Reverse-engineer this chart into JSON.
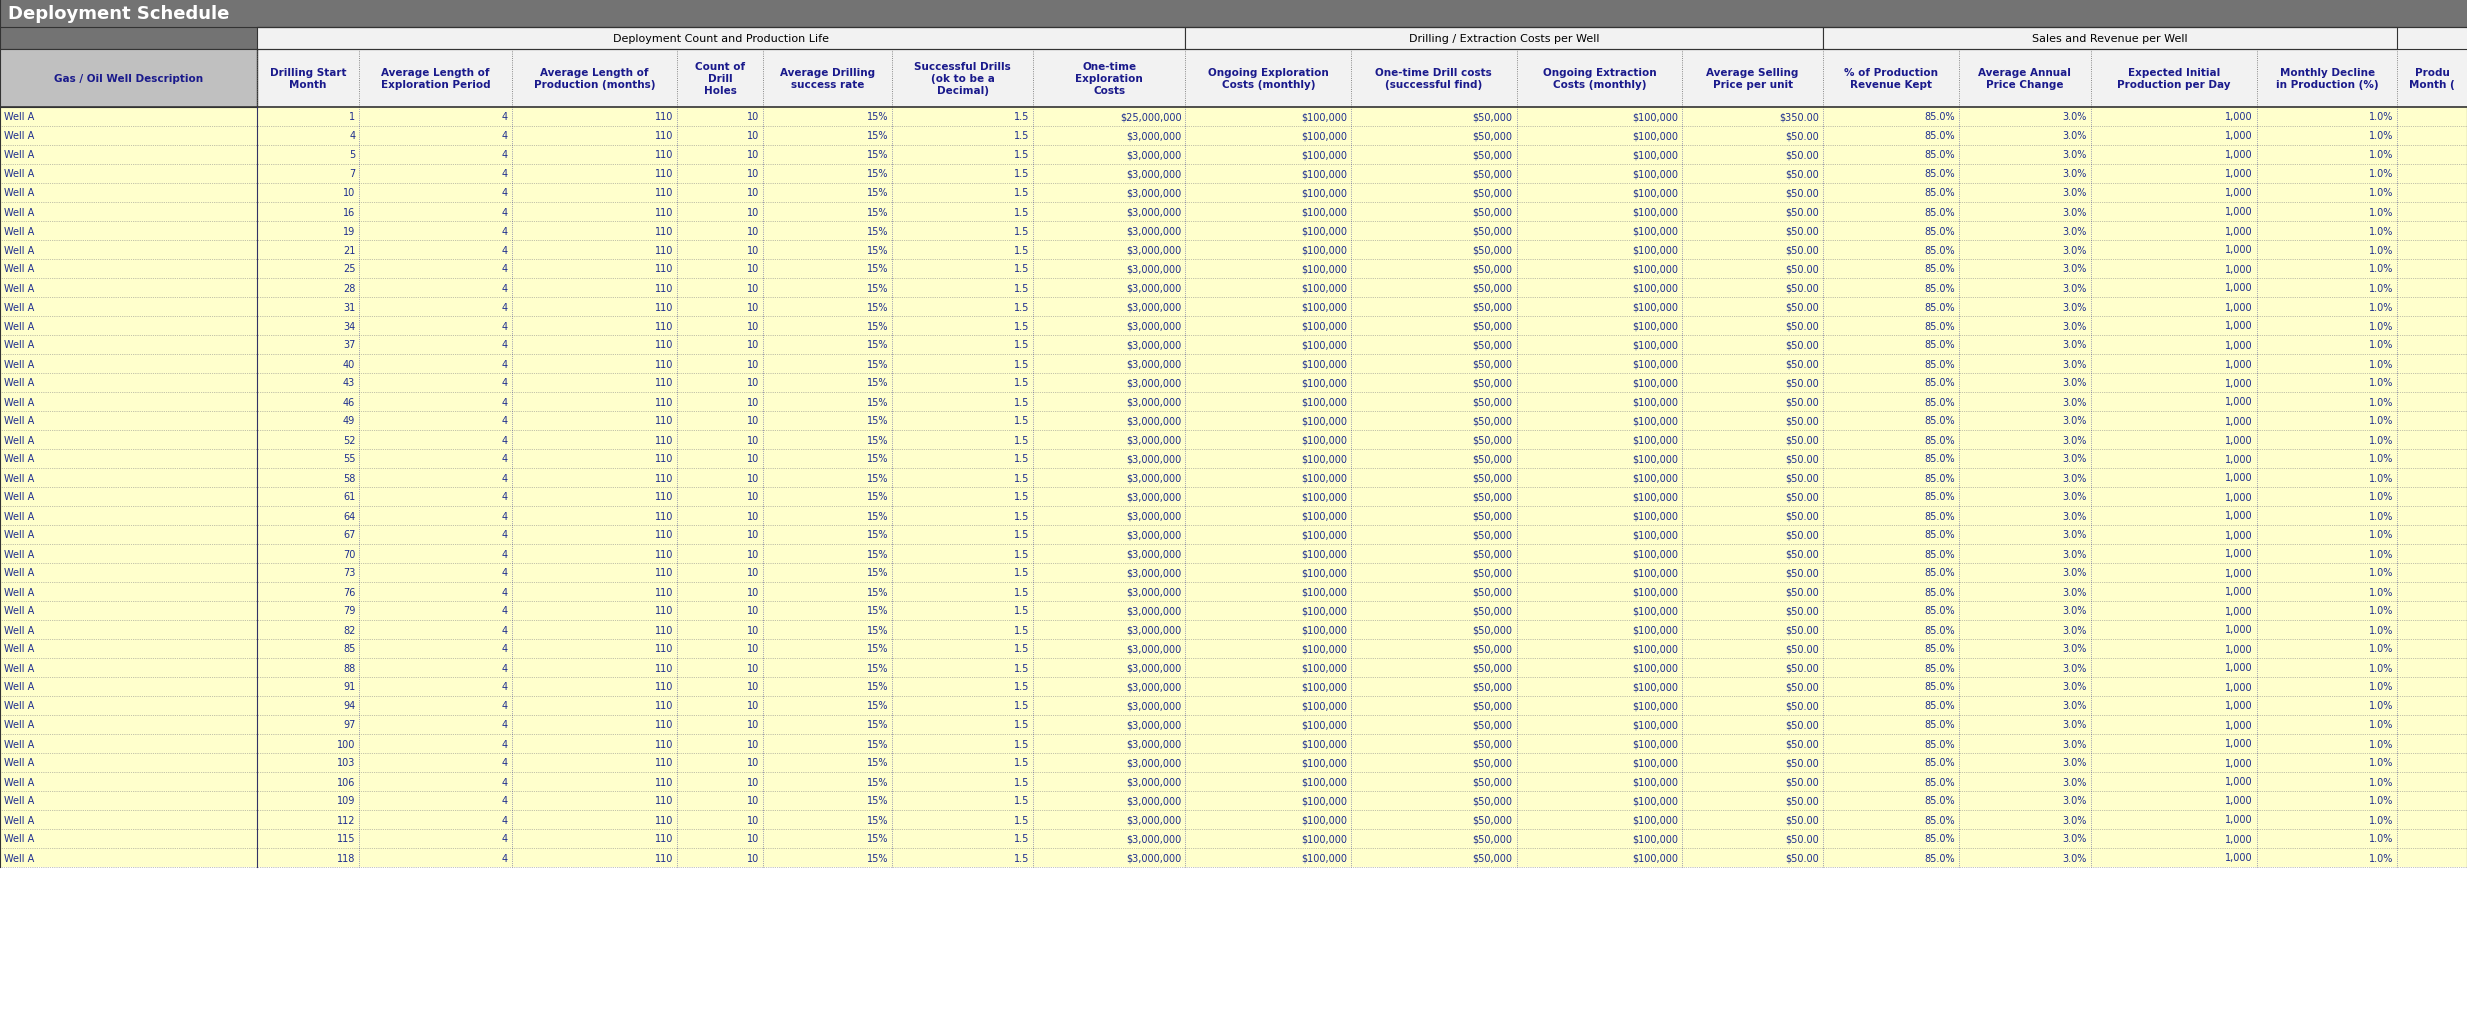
{
  "title": "Deployment Schedule",
  "group_spans": [
    [
      1,
      7,
      "Deployment Count and Production Life"
    ],
    [
      8,
      11,
      "Drilling / Extraction Costs per Well"
    ],
    [
      12,
      15,
      "Sales and Revenue per Well"
    ]
  ],
  "columns": [
    "Gas / Oil Well Description",
    "Drilling Start\nMonth",
    "Average Length of\nExploration Period",
    "Average Length of\nProduction (months)",
    "Count of\nDrill\nHoles",
    "Average Drilling\nsuccess rate",
    "Successful Drills\n(ok to be a\nDecimal)",
    "One-time\nExploration\nCosts",
    "Ongoing Exploration\nCosts (monthly)",
    "One-time Drill costs\n(successful find)",
    "Ongoing Extraction\nCosts (monthly)",
    "Average Selling\nPrice per unit",
    "% of Production\nRevenue Kept",
    "Average Annual\nPrice Change",
    "Expected Initial\nProduction per Day",
    "Monthly Decline\nin Production (%)",
    "Produ\nMonth ("
  ],
  "col_widths": [
    1.55,
    0.62,
    0.92,
    1.0,
    0.52,
    0.78,
    0.85,
    0.92,
    1.0,
    1.0,
    1.0,
    0.85,
    0.82,
    0.8,
    1.0,
    0.85,
    0.42
  ],
  "col_align": [
    "left",
    "right",
    "right",
    "right",
    "right",
    "right",
    "right",
    "right",
    "right",
    "right",
    "right",
    "right",
    "right",
    "right",
    "right",
    "right",
    "right"
  ],
  "header_bg": "#737373",
  "subheader_bg": "#f2f2f2",
  "col_header_bg": "#f2f2f2",
  "col0_header_bg": "#c0c0c0",
  "row_bg": "#ffffcc",
  "text_color": "#1f2f8f",
  "header_text_color": "#ffffff",
  "subheader_text_color": "#000000",
  "col_header_text_color": "#1a1a8c",
  "rows": [
    [
      "Well A",
      1,
      4,
      110,
      10,
      "15%",
      1.5,
      "$25,000,000",
      "$100,000",
      "$50,000",
      "$100,000",
      "$350.00",
      "85.0%",
      "3.0%",
      "1,000",
      "1.0%",
      ""
    ],
    [
      "Well A",
      4,
      4,
      110,
      10,
      "15%",
      1.5,
      "$3,000,000",
      "$100,000",
      "$50,000",
      "$100,000",
      "$50.00",
      "85.0%",
      "3.0%",
      "1,000",
      "1.0%",
      ""
    ],
    [
      "Well A",
      5,
      4,
      110,
      10,
      "15%",
      1.5,
      "$3,000,000",
      "$100,000",
      "$50,000",
      "$100,000",
      "$50.00",
      "85.0%",
      "3.0%",
      "1,000",
      "1.0%",
      ""
    ],
    [
      "Well A",
      7,
      4,
      110,
      10,
      "15%",
      1.5,
      "$3,000,000",
      "$100,000",
      "$50,000",
      "$100,000",
      "$50.00",
      "85.0%",
      "3.0%",
      "1,000",
      "1.0%",
      ""
    ],
    [
      "Well A",
      10,
      4,
      110,
      10,
      "15%",
      1.5,
      "$3,000,000",
      "$100,000",
      "$50,000",
      "$100,000",
      "$50.00",
      "85.0%",
      "3.0%",
      "1,000",
      "1.0%",
      ""
    ],
    [
      "Well A",
      16,
      4,
      110,
      10,
      "15%",
      1.5,
      "$3,000,000",
      "$100,000",
      "$50,000",
      "$100,000",
      "$50.00",
      "85.0%",
      "3.0%",
      "1,000",
      "1.0%",
      ""
    ],
    [
      "Well A",
      19,
      4,
      110,
      10,
      "15%",
      1.5,
      "$3,000,000",
      "$100,000",
      "$50,000",
      "$100,000",
      "$50.00",
      "85.0%",
      "3.0%",
      "1,000",
      "1.0%",
      ""
    ],
    [
      "Well A",
      21,
      4,
      110,
      10,
      "15%",
      1.5,
      "$3,000,000",
      "$100,000",
      "$50,000",
      "$100,000",
      "$50.00",
      "85.0%",
      "3.0%",
      "1,000",
      "1.0%",
      ""
    ],
    [
      "Well A",
      25,
      4,
      110,
      10,
      "15%",
      1.5,
      "$3,000,000",
      "$100,000",
      "$50,000",
      "$100,000",
      "$50.00",
      "85.0%",
      "3.0%",
      "1,000",
      "1.0%",
      ""
    ],
    [
      "Well A",
      28,
      4,
      110,
      10,
      "15%",
      1.5,
      "$3,000,000",
      "$100,000",
      "$50,000",
      "$100,000",
      "$50.00",
      "85.0%",
      "3.0%",
      "1,000",
      "1.0%",
      ""
    ],
    [
      "Well A",
      31,
      4,
      110,
      10,
      "15%",
      1.5,
      "$3,000,000",
      "$100,000",
      "$50,000",
      "$100,000",
      "$50.00",
      "85.0%",
      "3.0%",
      "1,000",
      "1.0%",
      ""
    ],
    [
      "Well A",
      34,
      4,
      110,
      10,
      "15%",
      1.5,
      "$3,000,000",
      "$100,000",
      "$50,000",
      "$100,000",
      "$50.00",
      "85.0%",
      "3.0%",
      "1,000",
      "1.0%",
      ""
    ],
    [
      "Well A",
      37,
      4,
      110,
      10,
      "15%",
      1.5,
      "$3,000,000",
      "$100,000",
      "$50,000",
      "$100,000",
      "$50.00",
      "85.0%",
      "3.0%",
      "1,000",
      "1.0%",
      ""
    ],
    [
      "Well A",
      40,
      4,
      110,
      10,
      "15%",
      1.5,
      "$3,000,000",
      "$100,000",
      "$50,000",
      "$100,000",
      "$50.00",
      "85.0%",
      "3.0%",
      "1,000",
      "1.0%",
      ""
    ],
    [
      "Well A",
      43,
      4,
      110,
      10,
      "15%",
      1.5,
      "$3,000,000",
      "$100,000",
      "$50,000",
      "$100,000",
      "$50.00",
      "85.0%",
      "3.0%",
      "1,000",
      "1.0%",
      ""
    ],
    [
      "Well A",
      46,
      4,
      110,
      10,
      "15%",
      1.5,
      "$3,000,000",
      "$100,000",
      "$50,000",
      "$100,000",
      "$50.00",
      "85.0%",
      "3.0%",
      "1,000",
      "1.0%",
      ""
    ],
    [
      "Well A",
      49,
      4,
      110,
      10,
      "15%",
      1.5,
      "$3,000,000",
      "$100,000",
      "$50,000",
      "$100,000",
      "$50.00",
      "85.0%",
      "3.0%",
      "1,000",
      "1.0%",
      ""
    ],
    [
      "Well A",
      52,
      4,
      110,
      10,
      "15%",
      1.5,
      "$3,000,000",
      "$100,000",
      "$50,000",
      "$100,000",
      "$50.00",
      "85.0%",
      "3.0%",
      "1,000",
      "1.0%",
      ""
    ],
    [
      "Well A",
      55,
      4,
      110,
      10,
      "15%",
      1.5,
      "$3,000,000",
      "$100,000",
      "$50,000",
      "$100,000",
      "$50.00",
      "85.0%",
      "3.0%",
      "1,000",
      "1.0%",
      ""
    ],
    [
      "Well A",
      58,
      4,
      110,
      10,
      "15%",
      1.5,
      "$3,000,000",
      "$100,000",
      "$50,000",
      "$100,000",
      "$50.00",
      "85.0%",
      "3.0%",
      "1,000",
      "1.0%",
      ""
    ],
    [
      "Well A",
      61,
      4,
      110,
      10,
      "15%",
      1.5,
      "$3,000,000",
      "$100,000",
      "$50,000",
      "$100,000",
      "$50.00",
      "85.0%",
      "3.0%",
      "1,000",
      "1.0%",
      ""
    ],
    [
      "Well A",
      64,
      4,
      110,
      10,
      "15%",
      1.5,
      "$3,000,000",
      "$100,000",
      "$50,000",
      "$100,000",
      "$50.00",
      "85.0%",
      "3.0%",
      "1,000",
      "1.0%",
      ""
    ],
    [
      "Well A",
      67,
      4,
      110,
      10,
      "15%",
      1.5,
      "$3,000,000",
      "$100,000",
      "$50,000",
      "$100,000",
      "$50.00",
      "85.0%",
      "3.0%",
      "1,000",
      "1.0%",
      ""
    ],
    [
      "Well A",
      70,
      4,
      110,
      10,
      "15%",
      1.5,
      "$3,000,000",
      "$100,000",
      "$50,000",
      "$100,000",
      "$50.00",
      "85.0%",
      "3.0%",
      "1,000",
      "1.0%",
      ""
    ],
    [
      "Well A",
      73,
      4,
      110,
      10,
      "15%",
      1.5,
      "$3,000,000",
      "$100,000",
      "$50,000",
      "$100,000",
      "$50.00",
      "85.0%",
      "3.0%",
      "1,000",
      "1.0%",
      ""
    ],
    [
      "Well A",
      76,
      4,
      110,
      10,
      "15%",
      1.5,
      "$3,000,000",
      "$100,000",
      "$50,000",
      "$100,000",
      "$50.00",
      "85.0%",
      "3.0%",
      "1,000",
      "1.0%",
      ""
    ],
    [
      "Well A",
      79,
      4,
      110,
      10,
      "15%",
      1.5,
      "$3,000,000",
      "$100,000",
      "$50,000",
      "$100,000",
      "$50.00",
      "85.0%",
      "3.0%",
      "1,000",
      "1.0%",
      ""
    ],
    [
      "Well A",
      82,
      4,
      110,
      10,
      "15%",
      1.5,
      "$3,000,000",
      "$100,000",
      "$50,000",
      "$100,000",
      "$50.00",
      "85.0%",
      "3.0%",
      "1,000",
      "1.0%",
      ""
    ],
    [
      "Well A",
      85,
      4,
      110,
      10,
      "15%",
      1.5,
      "$3,000,000",
      "$100,000",
      "$50,000",
      "$100,000",
      "$50.00",
      "85.0%",
      "3.0%",
      "1,000",
      "1.0%",
      ""
    ],
    [
      "Well A",
      88,
      4,
      110,
      10,
      "15%",
      1.5,
      "$3,000,000",
      "$100,000",
      "$50,000",
      "$100,000",
      "$50.00",
      "85.0%",
      "3.0%",
      "1,000",
      "1.0%",
      ""
    ],
    [
      "Well A",
      91,
      4,
      110,
      10,
      "15%",
      1.5,
      "$3,000,000",
      "$100,000",
      "$50,000",
      "$100,000",
      "$50.00",
      "85.0%",
      "3.0%",
      "1,000",
      "1.0%",
      ""
    ],
    [
      "Well A",
      94,
      4,
      110,
      10,
      "15%",
      1.5,
      "$3,000,000",
      "$100,000",
      "$50,000",
      "$100,000",
      "$50.00",
      "85.0%",
      "3.0%",
      "1,000",
      "1.0%",
      ""
    ],
    [
      "Well A",
      97,
      4,
      110,
      10,
      "15%",
      1.5,
      "$3,000,000",
      "$100,000",
      "$50,000",
      "$100,000",
      "$50.00",
      "85.0%",
      "3.0%",
      "1,000",
      "1.0%",
      ""
    ],
    [
      "Well A",
      100,
      4,
      110,
      10,
      "15%",
      1.5,
      "$3,000,000",
      "$100,000",
      "$50,000",
      "$100,000",
      "$50.00",
      "85.0%",
      "3.0%",
      "1,000",
      "1.0%",
      ""
    ],
    [
      "Well A",
      103,
      4,
      110,
      10,
      "15%",
      1.5,
      "$3,000,000",
      "$100,000",
      "$50,000",
      "$100,000",
      "$50.00",
      "85.0%",
      "3.0%",
      "1,000",
      "1.0%",
      ""
    ],
    [
      "Well A",
      106,
      4,
      110,
      10,
      "15%",
      1.5,
      "$3,000,000",
      "$100,000",
      "$50,000",
      "$100,000",
      "$50.00",
      "85.0%",
      "3.0%",
      "1,000",
      "1.0%",
      ""
    ],
    [
      "Well A",
      109,
      4,
      110,
      10,
      "15%",
      1.5,
      "$3,000,000",
      "$100,000",
      "$50,000",
      "$100,000",
      "$50.00",
      "85.0%",
      "3.0%",
      "1,000",
      "1.0%",
      ""
    ],
    [
      "Well A",
      112,
      4,
      110,
      10,
      "15%",
      1.5,
      "$3,000,000",
      "$100,000",
      "$50,000",
      "$100,000",
      "$50.00",
      "85.0%",
      "3.0%",
      "1,000",
      "1.0%",
      ""
    ],
    [
      "Well A",
      115,
      4,
      110,
      10,
      "15%",
      1.5,
      "$3,000,000",
      "$100,000",
      "$50,000",
      "$100,000",
      "$50.00",
      "85.0%",
      "3.0%",
      "1,000",
      "1.0%",
      ""
    ],
    [
      "Well A",
      118,
      4,
      110,
      10,
      "15%",
      1.5,
      "$3,000,000",
      "$100,000",
      "$50,000",
      "$100,000",
      "$50.00",
      "85.0%",
      "3.0%",
      "1,000",
      "1.0%",
      ""
    ]
  ]
}
